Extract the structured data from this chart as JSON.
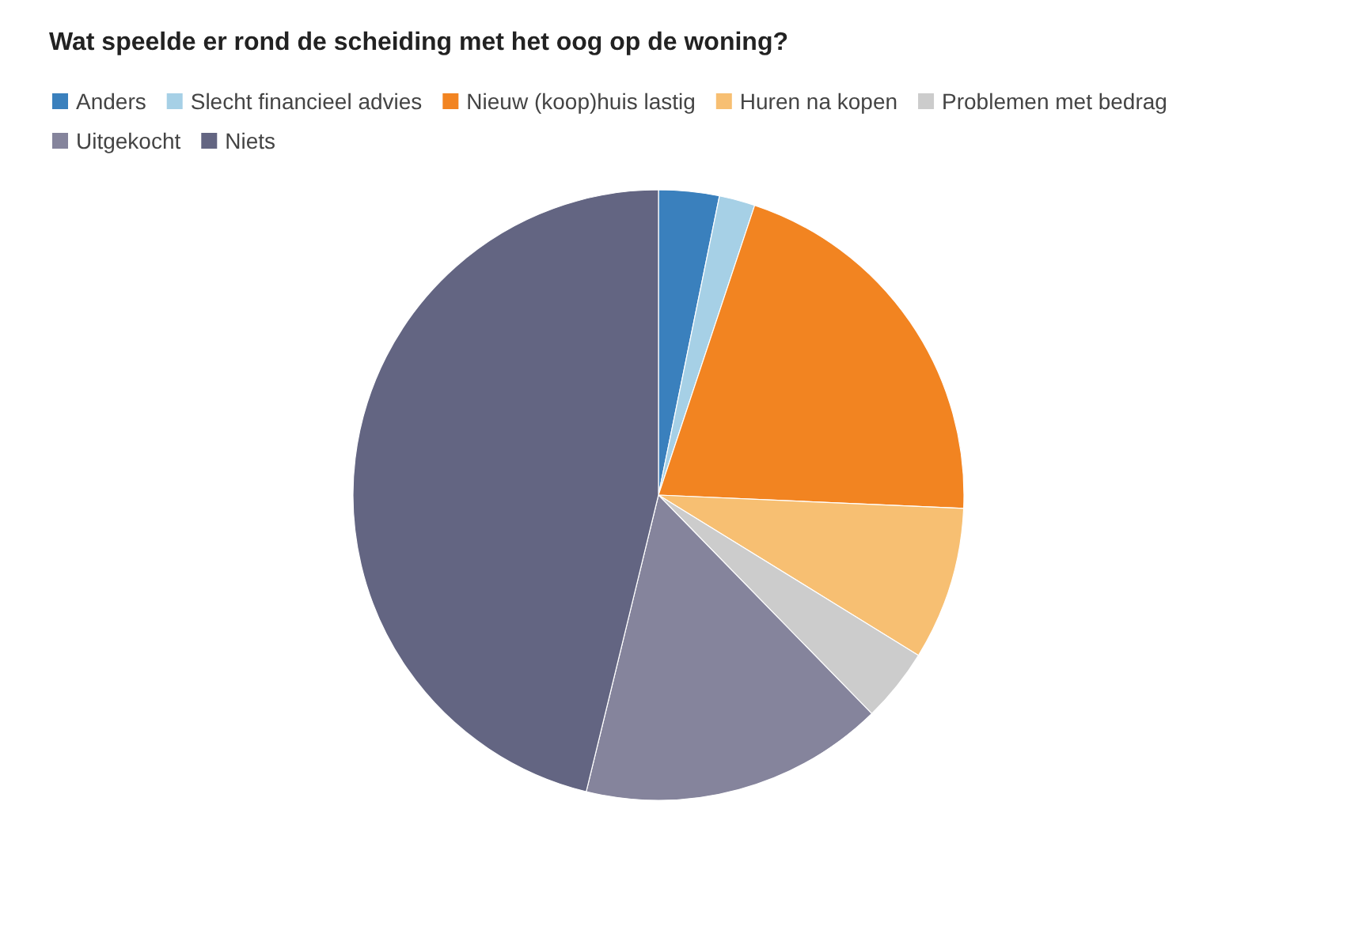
{
  "chart_data": {
    "type": "pie",
    "title": "Wat speelde er rond de scheiding met het oog op de woning?",
    "categories": [
      "Anders",
      "Slecht financieel advies",
      "Nieuw (koop)huis lastig",
      "Huren na kopen",
      "Problemen met bedrag",
      "Uitgekocht",
      "Niets"
    ],
    "values": [
      3.2,
      1.9,
      20.6,
      8.1,
      3.9,
      16.1,
      46.2
    ],
    "colors": [
      "#3a80bd",
      "#a6d0e6",
      "#f28421",
      "#f7bf72",
      "#cccccc",
      "#85849c",
      "#636582"
    ],
    "legend": "top left"
  }
}
